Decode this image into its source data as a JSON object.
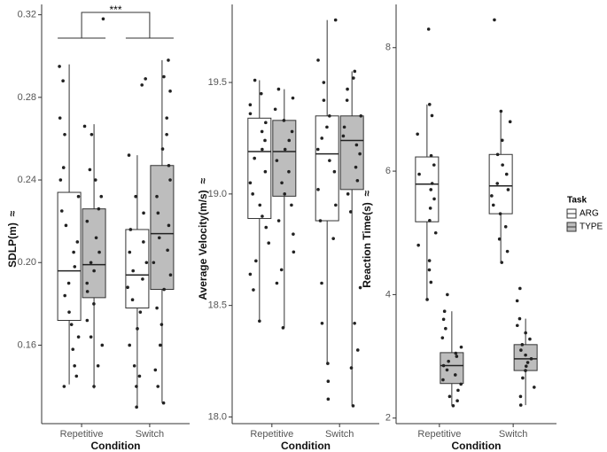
{
  "chart_data": [
    {
      "type": "box",
      "ylabel": "SDLP(m)",
      "axis_break": "≈",
      "xlabel": "Condition",
      "annotation": "***",
      "categories": [
        "Repetitive",
        "Switch"
      ],
      "ylim": [
        0.122,
        0.325
      ],
      "yticks": [
        0.16,
        {
          "value": 0.2,
          "label": "0.20"
        },
        0.24,
        0.28,
        0.32
      ],
      "series": [
        {
          "color": "#ffffff",
          "boxes": [
            {
              "low": 0.141,
              "q1": 0.172,
              "median": 0.196,
              "q3": 0.234,
              "high": 0.296,
              "points": [
                0.295,
                0.288,
                0.27,
                0.262,
                0.246,
                0.24,
                0.232,
                0.225,
                0.218,
                0.21,
                0.205,
                0.198,
                0.19,
                0.184,
                0.176,
                0.17,
                0.164,
                0.158,
                0.15,
                0.145,
                0.14
              ]
            },
            {
              "low": 0.13,
              "q1": 0.178,
              "median": 0.194,
              "q3": 0.216,
              "high": 0.252,
              "points": [
                0.289,
                0.286,
                0.252,
                0.232,
                0.224,
                0.216,
                0.21,
                0.205,
                0.2,
                0.196,
                0.192,
                0.188,
                0.182,
                0.176,
                0.168,
                0.16,
                0.15,
                0.145,
                0.14,
                0.13
              ]
            }
          ]
        },
        {
          "color": "#bdbdbd",
          "boxes": [
            {
              "low": 0.139,
              "q1": 0.183,
              "median": 0.199,
              "q3": 0.226,
              "high": 0.267,
              "points": [
                0.318,
                0.266,
                0.262,
                0.245,
                0.24,
                0.232,
                0.226,
                0.22,
                0.212,
                0.205,
                0.2,
                0.196,
                0.19,
                0.186,
                0.18,
                0.172,
                0.164,
                0.16,
                0.15,
                0.14
              ]
            },
            {
              "low": 0.132,
              "q1": 0.187,
              "median": 0.214,
              "q3": 0.247,
              "high": 0.298,
              "points": [
                0.298,
                0.29,
                0.283,
                0.27,
                0.262,
                0.255,
                0.247,
                0.24,
                0.232,
                0.224,
                0.218,
                0.212,
                0.206,
                0.2,
                0.194,
                0.187,
                0.178,
                0.17,
                0.16,
                0.148,
                0.14,
                0.132
              ]
            }
          ]
        }
      ]
    },
    {
      "type": "box",
      "ylabel": "Average Velocity(m/s)",
      "axis_break": "≈",
      "xlabel": "Condition",
      "categories": [
        "Repetitive",
        "Switch"
      ],
      "ylim": [
        17.97,
        19.85
      ],
      "yticks": [
        {
          "value": 18,
          "label": "18.0"
        },
        18.5,
        {
          "value": 19,
          "label": "19.0"
        },
        19.5
      ],
      "series": [
        {
          "color": "#ffffff",
          "boxes": [
            {
              "low": 18.43,
              "q1": 18.89,
              "median": 19.19,
              "q3": 19.34,
              "high": 19.51,
              "points": [
                19.51,
                19.45,
                19.4,
                19.36,
                19.32,
                19.28,
                19.24,
                19.2,
                19.16,
                19.1,
                19.05,
                19.0,
                18.95,
                18.9,
                18.85,
                18.78,
                18.7,
                18.64,
                18.57,
                18.43
              ]
            },
            {
              "low": 18.24,
              "q1": 18.88,
              "median": 19.18,
              "q3": 19.35,
              "high": 19.78,
              "points": [
                19.78,
                19.6,
                19.5,
                19.42,
                19.35,
                19.3,
                19.25,
                19.2,
                19.15,
                19.1,
                19.02,
                18.95,
                18.88,
                18.8,
                18.6,
                18.42,
                18.24,
                18.16,
                18.08
              ]
            }
          ]
        },
        {
          "color": "#bdbdbd",
          "boxes": [
            {
              "low": 18.4,
              "q1": 18.99,
              "median": 19.19,
              "q3": 19.33,
              "high": 19.47,
              "points": [
                19.47,
                19.43,
                19.38,
                19.33,
                19.28,
                19.24,
                19.2,
                19.15,
                19.1,
                19.05,
                19.0,
                18.95,
                18.88,
                18.82,
                18.74,
                18.66,
                18.6,
                18.4
              ]
            },
            {
              "low": 18.05,
              "q1": 19.02,
              "median": 19.24,
              "q3": 19.35,
              "high": 19.55,
              "points": [
                19.55,
                19.52,
                19.47,
                19.42,
                19.35,
                19.3,
                19.26,
                19.22,
                19.18,
                19.12,
                19.06,
                19.0,
                18.92,
                18.58,
                18.42,
                18.3,
                18.22,
                18.05
              ]
            }
          ]
        }
      ]
    },
    {
      "type": "box",
      "ylabel": "Reaction Time(s)",
      "axis_break": "≈",
      "xlabel": "Condition",
      "categories": [
        "Repetitive",
        "Switch"
      ],
      "ylim": [
        1.91,
        8.7
      ],
      "yticks": [
        2,
        4,
        6,
        8
      ],
      "legend": {
        "title": "Task",
        "position": "right"
      },
      "series": [
        {
          "name": "ARG",
          "color": "#ffffff",
          "boxes": [
            {
              "low": 3.92,
              "q1": 5.18,
              "median": 5.79,
              "q3": 6.23,
              "high": 7.08,
              "points": [
                8.3,
                7.08,
                6.9,
                6.6,
                6.25,
                6.1,
                5.95,
                5.8,
                5.7,
                5.55,
                5.4,
                5.2,
                5.0,
                4.8,
                4.55,
                4.4,
                4.2,
                3.92
              ]
            },
            {
              "low": 4.52,
              "q1": 5.31,
              "median": 5.76,
              "q3": 6.27,
              "high": 6.97,
              "points": [
                8.45,
                6.97,
                6.8,
                6.5,
                6.27,
                6.1,
                5.95,
                5.8,
                5.7,
                5.6,
                5.45,
                5.31,
                5.1,
                4.9,
                4.7,
                4.52
              ]
            }
          ]
        },
        {
          "name": "TYPE",
          "color": "#bdbdbd",
          "boxes": [
            {
              "low": 2.2,
              "q1": 2.56,
              "median": 2.85,
              "q3": 3.06,
              "high": 3.73,
              "points": [
                4.0,
                3.73,
                3.6,
                3.45,
                3.3,
                3.15,
                3.05,
                3.0,
                2.92,
                2.85,
                2.78,
                2.7,
                2.62,
                2.55,
                2.45,
                2.35,
                2.28,
                2.2
              ]
            },
            {
              "low": 2.21,
              "q1": 2.77,
              "median": 2.96,
              "q3": 3.19,
              "high": 3.61,
              "points": [
                4.1,
                3.9,
                3.61,
                3.5,
                3.38,
                3.28,
                3.19,
                3.1,
                3.02,
                2.96,
                2.9,
                2.84,
                2.77,
                2.65,
                2.5,
                2.35,
                2.21
              ]
            }
          ]
        }
      ]
    }
  ]
}
